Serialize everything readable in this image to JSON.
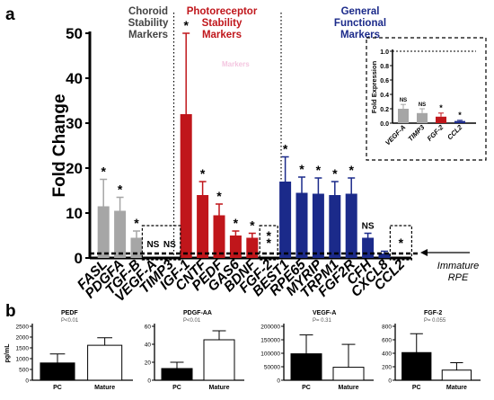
{
  "panel_labels": {
    "a": "a",
    "b": "b"
  },
  "immature_label": [
    "Immature",
    "RPE"
  ],
  "colors": {
    "gray": "#a6a6a6",
    "red": "#c0161b",
    "blue": "#1b2a8a",
    "black": "#000000",
    "header_gray": "#444444"
  },
  "chart_data": [
    {
      "id": "panel-a",
      "type": "bar",
      "ylabel": "Fold Change",
      "ylim": [
        0,
        50
      ],
      "yticks": [
        0,
        10,
        20,
        30,
        40,
        50
      ],
      "reference_line": 1,
      "group_headers": [
        {
          "lines": [
            "Choroid",
            "Stability",
            "Markers"
          ],
          "color": "#444444"
        },
        {
          "lines": [
            "Photoreceptor",
            "Stability",
            "Markers"
          ],
          "color": "#c0161b"
        },
        {
          "lines": [
            "General",
            "Functional",
            "Markers"
          ],
          "color": "#1b2a8a"
        }
      ],
      "watermark": "Markers",
      "categories": [
        "FASL",
        "PDGFA",
        "TGF-B",
        "VEGF-A",
        "TIMP3",
        "IGF-1",
        "CNTF",
        "PEDF",
        "GAS6",
        "BDNF",
        "FGF-2",
        "BEST1",
        "RPE65",
        "MYRIP",
        "TRPM1",
        "FGF2R",
        "CFH",
        "CXCL8",
        "CCL2"
      ],
      "values": [
        11.5,
        10.5,
        4.5,
        0,
        0,
        32,
        14,
        9.5,
        5,
        4.5,
        0,
        17,
        14.5,
        14.3,
        14,
        14.3,
        4.5,
        1,
        0
      ],
      "errors": [
        6,
        3,
        1.5,
        0,
        0,
        18,
        3,
        2.5,
        1,
        1,
        0,
        5.5,
        3.5,
        3.5,
        3,
        3.5,
        1,
        0.5,
        0
      ],
      "colors": [
        "gray",
        "gray",
        "gray",
        "gray",
        "gray",
        "red",
        "red",
        "red",
        "red",
        "red",
        "red",
        "blue",
        "blue",
        "blue",
        "blue",
        "blue",
        "blue",
        "blue",
        "blue"
      ],
      "annotations": [
        "*",
        "*",
        "*",
        "NS",
        "NS",
        "*",
        "*",
        "*",
        "*",
        "*",
        "*",
        "*",
        "*",
        "*",
        "*",
        "*",
        "NS",
        "",
        ""
      ],
      "dashed_box_annotations": [
        "*",
        "*"
      ]
    },
    {
      "id": "panel-a-inset",
      "type": "bar",
      "ylabel": "Fold Expression",
      "ylim": [
        0,
        1.0
      ],
      "yticks": [
        "0.0",
        "0.2",
        "0.4",
        "0.6",
        "0.8",
        "1.0"
      ],
      "categories": [
        "VEGF-A",
        "TIMP3",
        "FGF-2",
        "CCL2"
      ],
      "values": [
        0.2,
        0.14,
        0.09,
        0.03
      ],
      "errors": [
        0.06,
        0.06,
        0.05,
        0.01
      ],
      "colors": [
        "gray",
        "gray",
        "red",
        "blue"
      ],
      "annotations": [
        "NS",
        "NS",
        "*",
        "*"
      ]
    },
    {
      "id": "panel-b-pedf",
      "type": "bar",
      "title": "PEDF",
      "subtitle": "P<0.01",
      "ylabel": "pg/mL",
      "ylim": [
        0,
        2500
      ],
      "yticks": [
        "0",
        "500",
        "1000",
        "1500",
        "2000",
        "2500"
      ],
      "categories": [
        "PC",
        "Mature"
      ],
      "values": [
        800,
        1620
      ],
      "errors": [
        420,
        350
      ],
      "fills": [
        "black",
        "white"
      ]
    },
    {
      "id": "panel-b-pdgfaa",
      "type": "bar",
      "title": "PDGF-AA",
      "subtitle": "P<0.01",
      "ylim": [
        0,
        60
      ],
      "yticks": [
        "0",
        "20",
        "40",
        "60"
      ],
      "categories": [
        "PC",
        "Mature"
      ],
      "values": [
        13,
        45
      ],
      "errors": [
        7,
        10
      ],
      "fills": [
        "black",
        "white"
      ]
    },
    {
      "id": "panel-b-vegfa",
      "type": "bar",
      "title": "VEGF-A",
      "subtitle": "P= 0.31",
      "ylim": [
        0,
        200000
      ],
      "yticks": [
        "0",
        "50000",
        "100000",
        "150000",
        "200000"
      ],
      "categories": [
        "PC",
        "Mature"
      ],
      "values": [
        98000,
        48000
      ],
      "errors": [
        70000,
        85000
      ],
      "fills": [
        "black",
        "white"
      ]
    },
    {
      "id": "panel-b-fgf2",
      "type": "bar",
      "title": "FGF-2",
      "subtitle": "P= 0.055",
      "ylim": [
        0,
        800
      ],
      "yticks": [
        "0",
        "200",
        "400",
        "600",
        "800"
      ],
      "categories": [
        "PC",
        "Mature"
      ],
      "values": [
        410,
        150
      ],
      "errors": [
        280,
        110
      ],
      "fills": [
        "black",
        "white"
      ]
    }
  ]
}
